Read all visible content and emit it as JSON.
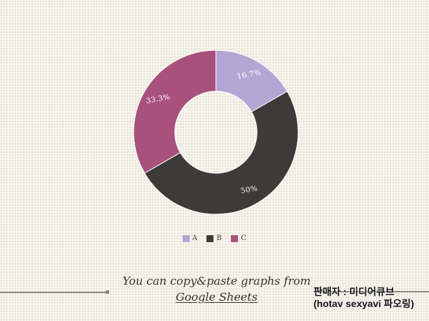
{
  "slide": {
    "background_color": "#f2efe6",
    "decor_line_color": "#8d8779"
  },
  "chart_data": {
    "type": "pie",
    "donut_hole_ratio": 0.5,
    "start_angle_deg": 0,
    "direction": "clockwise",
    "categories": [
      "A",
      "B",
      "C"
    ],
    "values": [
      16.7,
      50,
      33.3
    ],
    "slice_labels": [
      "16.7%",
      "50%",
      "33.3%"
    ],
    "colors": [
      "#b4a6d4",
      "#3e3a38",
      "#a8517d"
    ],
    "slice_label_color": "#ffffff",
    "slice_border_color": "#ffffff",
    "legend_position": "bottom"
  },
  "legend": {
    "items": [
      {
        "label": "A",
        "color": "#b4a6d4"
      },
      {
        "label": "B",
        "color": "#3e3a38"
      },
      {
        "label": "C",
        "color": "#a8517d"
      }
    ],
    "text_color": "#3c3832"
  },
  "caption": {
    "line1": "You can copy&paste graphs from",
    "line2": "Google Sheets",
    "color": "#37332d"
  },
  "watermark": {
    "line1": "판매자 : 미디어큐브",
    "line2": "(hotav sexyavi 파오링)",
    "color": "#101010"
  }
}
